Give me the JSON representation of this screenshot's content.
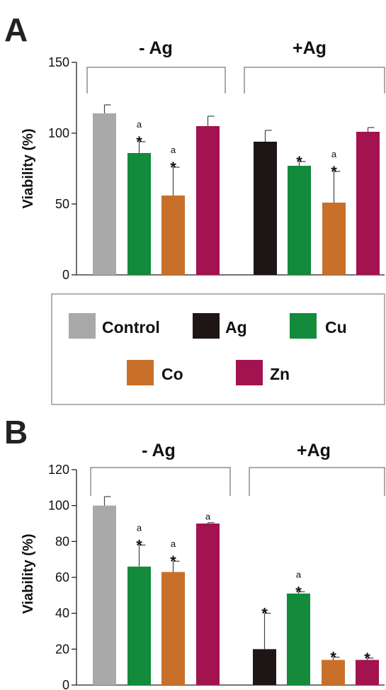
{
  "legend": {
    "items": [
      {
        "label": "Control",
        "color": "#a9a9a9"
      },
      {
        "label": "Ag",
        "color": "#1e1614"
      },
      {
        "label": "Cu",
        "color": "#138a3c"
      },
      {
        "label": "Co",
        "color": "#c8702a"
      },
      {
        "label": "Zn",
        "color": "#a3134f"
      }
    ]
  },
  "chart_data": [
    {
      "panel": "A",
      "type": "bar",
      "ylabel": "Viability (%)",
      "ylim": [
        0,
        150
      ],
      "yticks": [
        0,
        50,
        100,
        150
      ],
      "groups": [
        "- Ag",
        "+Ag"
      ],
      "bars": [
        {
          "group": "- Ag",
          "series": "Control",
          "value": 114,
          "error": 6,
          "annotations": []
        },
        {
          "group": "- Ag",
          "series": "Cu",
          "value": 86,
          "error": 8,
          "annotations": [
            "a",
            "*"
          ]
        },
        {
          "group": "- Ag",
          "series": "Co",
          "value": 56,
          "error": 20,
          "annotations": [
            "a",
            "*"
          ]
        },
        {
          "group": "- Ag",
          "series": "Zn",
          "value": 105,
          "error": 7,
          "annotations": []
        },
        {
          "group": "+Ag",
          "series": "Ag",
          "value": 94,
          "error": 8,
          "annotations": []
        },
        {
          "group": "+Ag",
          "series": "Cu",
          "value": 77,
          "error": 3,
          "annotations": [
            "*"
          ]
        },
        {
          "group": "+Ag",
          "series": "Co",
          "value": 51,
          "error": 22,
          "annotations": [
            "a",
            "*"
          ]
        },
        {
          "group": "+Ag",
          "series": "Zn",
          "value": 101,
          "error": 3,
          "annotations": []
        }
      ]
    },
    {
      "panel": "B",
      "type": "bar",
      "ylabel": "Viability (%)",
      "ylim": [
        0,
        120
      ],
      "yticks": [
        0,
        20,
        40,
        60,
        80,
        100,
        120
      ],
      "groups": [
        "- Ag",
        "+Ag"
      ],
      "bars": [
        {
          "group": "- Ag",
          "series": "Control",
          "value": 100,
          "error": 5,
          "annotations": []
        },
        {
          "group": "- Ag",
          "series": "Cu",
          "value": 66,
          "error": 12,
          "annotations": [
            "a",
            "*"
          ]
        },
        {
          "group": "- Ag",
          "series": "Co",
          "value": 63,
          "error": 6,
          "annotations": [
            "a",
            "*"
          ]
        },
        {
          "group": "- Ag",
          "series": "Zn",
          "value": 90,
          "error": 0.5,
          "annotations": [
            "a"
          ]
        },
        {
          "group": "+Ag",
          "series": "Ag",
          "value": 20,
          "error": 20,
          "annotations": [
            "*"
          ]
        },
        {
          "group": "+Ag",
          "series": "Cu",
          "value": 51,
          "error": 1,
          "annotations": [
            "a",
            "*"
          ]
        },
        {
          "group": "+Ag",
          "series": "Co",
          "value": 14,
          "error": 1.5,
          "annotations": [
            "*"
          ]
        },
        {
          "group": "+Ag",
          "series": "Zn",
          "value": 14,
          "error": 1,
          "annotations": [
            "*"
          ]
        }
      ]
    }
  ]
}
